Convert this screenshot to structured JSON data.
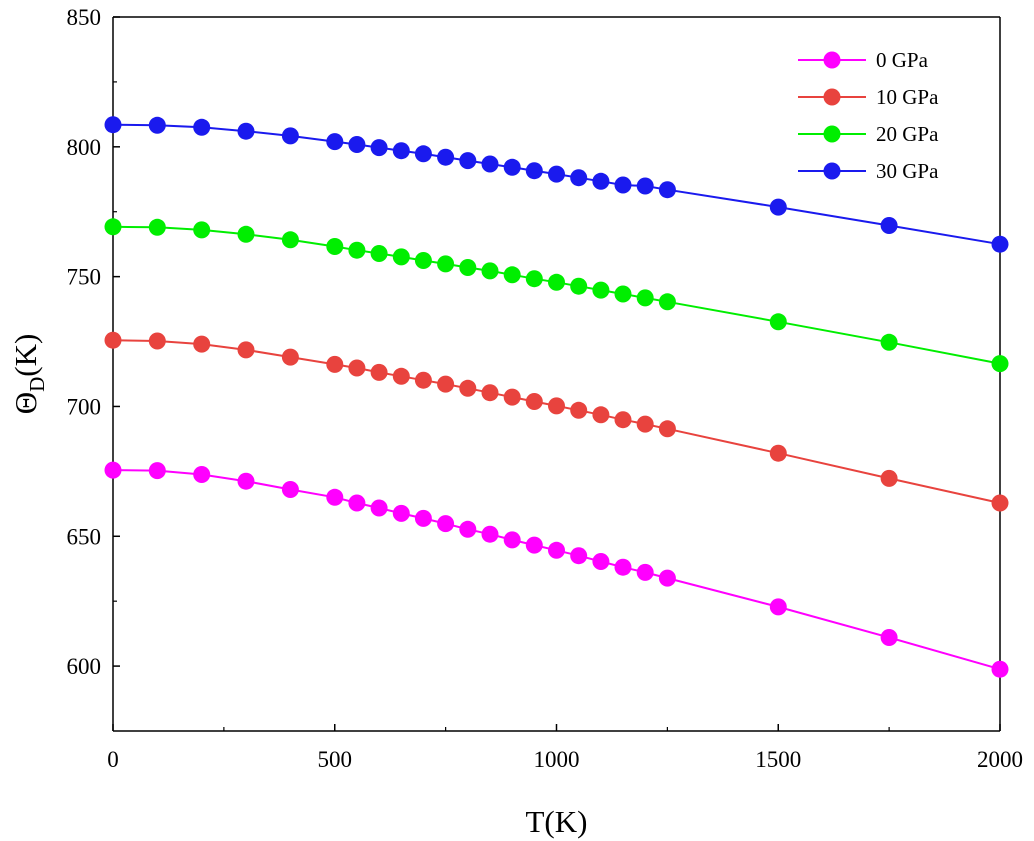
{
  "chart_data": {
    "type": "line",
    "title": "",
    "xlabel": "T(K)",
    "ylabel_main": "Θ",
    "ylabel_sub": "D",
    "ylabel_suffix": "(K)",
    "xlim": [
      0,
      2000
    ],
    "ylim": [
      575,
      850
    ],
    "xticks": [
      0,
      500,
      1000,
      1500,
      2000
    ],
    "xtick_labels": [
      "0",
      "500",
      "1000",
      "1500",
      "2000"
    ],
    "yticks": [
      600,
      650,
      700,
      750,
      800,
      850
    ],
    "ytick_labels": [
      "600",
      "650",
      "700",
      "750",
      "800",
      "850"
    ],
    "grid": false,
    "legend_position": "top-right",
    "x": [
      0,
      100,
      200,
      300,
      400,
      500,
      550,
      600,
      650,
      700,
      750,
      800,
      850,
      900,
      950,
      1000,
      1050,
      1100,
      1150,
      1200,
      1250,
      1500,
      1750,
      2000
    ],
    "series": [
      {
        "name": "0 GPa",
        "color": "#ff00ff",
        "values": [
          675.5,
          675.3,
          673.8,
          671.2,
          668.0,
          665.0,
          662.8,
          660.9,
          658.8,
          656.9,
          654.9,
          652.7,
          650.8,
          648.6,
          646.6,
          644.6,
          642.5,
          640.3,
          638.1,
          636.1,
          633.9,
          622.8,
          611.0,
          598.8
        ]
      },
      {
        "name": "10 GPa",
        "color": "#e8433e",
        "values": [
          725.5,
          725.2,
          724.0,
          721.8,
          719.0,
          716.2,
          714.8,
          713.1,
          711.6,
          710.1,
          708.6,
          707.0,
          705.3,
          703.6,
          701.9,
          700.2,
          698.5,
          696.8,
          694.9,
          693.2,
          691.4,
          682.0,
          672.3,
          662.8
        ]
      },
      {
        "name": "20 GPa",
        "color": "#00ee00",
        "values": [
          769.2,
          769.0,
          768.0,
          766.3,
          764.2,
          761.6,
          760.2,
          758.9,
          757.6,
          756.2,
          754.9,
          753.5,
          752.2,
          750.7,
          749.2,
          747.8,
          746.3,
          744.8,
          743.3,
          741.8,
          740.3,
          732.6,
          724.7,
          716.5
        ]
      },
      {
        "name": "30 GPa",
        "color": "#1a1aee",
        "values": [
          808.5,
          808.3,
          807.5,
          806.0,
          804.2,
          802.0,
          800.9,
          799.7,
          798.5,
          797.3,
          796.0,
          794.7,
          793.4,
          792.1,
          790.8,
          789.5,
          788.1,
          786.7,
          785.3,
          784.9,
          783.5,
          776.8,
          769.7,
          762.5
        ]
      }
    ]
  }
}
